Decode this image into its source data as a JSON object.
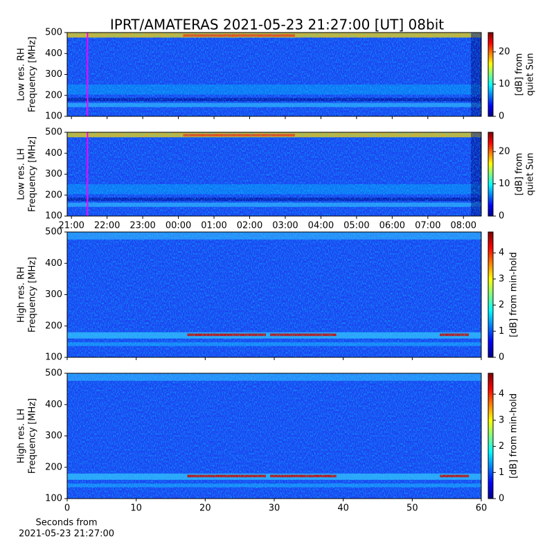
{
  "title": "IPRT/AMATERAS 2021-05-23 21:27:00 [UT]   08bit",
  "chart_data": [
    {
      "type": "heatmap",
      "ylabel": [
        "Low res. RH",
        "Frequency [MHz]"
      ],
      "ylim": [
        100,
        500
      ],
      "yticks": [
        100,
        200,
        300,
        400,
        500
      ],
      "xlim": [
        20.88,
        32.5
      ],
      "xticks": [
        21,
        22,
        23,
        24,
        25,
        26,
        27,
        28,
        29,
        30,
        31,
        32
      ],
      "show_xticklabels": false,
      "marker_x": 21.45,
      "marker_color": "#ff00ff",
      "colorbar_label": [
        "[dB] from",
        "quiet Sun"
      ],
      "clim": [
        0,
        26
      ],
      "cticks": [
        0,
        10,
        20
      ]
    },
    {
      "type": "heatmap",
      "ylabel": [
        "Low res. LH",
        "Frequency [MHz]"
      ],
      "ylim": [
        100,
        500
      ],
      "yticks": [
        100,
        200,
        300,
        400,
        500
      ],
      "xlim": [
        20.88,
        32.5
      ],
      "xticks": [
        {
          "value": 21,
          "label": "21:00"
        },
        {
          "value": 22,
          "label": "22:00"
        },
        {
          "value": 23,
          "label": "23:00"
        },
        {
          "value": 24,
          "label": "00:00"
        },
        {
          "value": 25,
          "label": "01:00"
        },
        {
          "value": 26,
          "label": "02:00"
        },
        {
          "value": 27,
          "label": "03:00"
        },
        {
          "value": 28,
          "label": "04:00"
        },
        {
          "value": 29,
          "label": "05:00"
        },
        {
          "value": 30,
          "label": "06:00"
        },
        {
          "value": 31,
          "label": "07:00"
        },
        {
          "value": 32,
          "label": "08:00"
        }
      ],
      "show_xticklabels": true,
      "marker_x": 21.45,
      "marker_color": "#ff00ff",
      "colorbar_label": [
        "[dB] from",
        "quiet Sun"
      ],
      "clim": [
        0,
        26
      ],
      "cticks": [
        0,
        10,
        20
      ]
    },
    {
      "type": "heatmap",
      "ylabel": [
        "High res. RH",
        "Frequency [MHz]"
      ],
      "ylim": [
        100,
        500
      ],
      "yticks": [
        100,
        200,
        300,
        400,
        500
      ],
      "xlim": [
        0,
        60
      ],
      "xticks": [
        0,
        10,
        20,
        30,
        40,
        50,
        60
      ],
      "show_xticklabels": false,
      "colorbar_label": [
        "[dB] from min-hold"
      ],
      "clim": [
        0,
        4.8
      ],
      "cticks": [
        0,
        1,
        2,
        3,
        4
      ]
    },
    {
      "type": "heatmap",
      "ylabel": [
        "High res. LH",
        "Frequency [MHz]"
      ],
      "ylim": [
        100,
        500
      ],
      "yticks": [
        100,
        200,
        300,
        400,
        500
      ],
      "xlim": [
        0,
        60
      ],
      "xticks": [
        0,
        10,
        20,
        30,
        40,
        50,
        60
      ],
      "show_xticklabels": true,
      "xlabel": [
        "Seconds from",
        "2021-05-23 21:27:00"
      ],
      "colorbar_label": [
        "[dB] from min-hold"
      ],
      "clim": [
        0,
        4.8
      ],
      "cticks": [
        0,
        1,
        2,
        3,
        4
      ]
    }
  ]
}
